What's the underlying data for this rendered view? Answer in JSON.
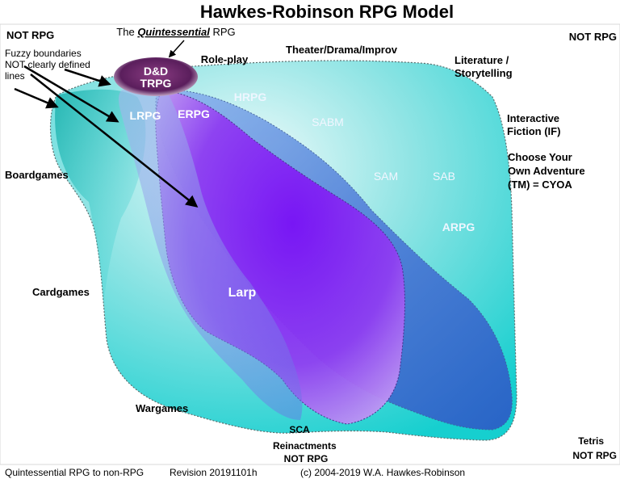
{
  "title": "Hawkes-Robinson RPG Model",
  "quintessential_label": {
    "prefix": "The ",
    "emphasis": "Quintessential",
    "suffix": " RPG"
  },
  "corner_labels": {
    "top_left": "NOT RPG",
    "top_right": "NOT RPG",
    "bottom_right_1": "Tetris",
    "bottom_right_2": "NOT RPG"
  },
  "fuzzy_note": [
    "Fuzzy boundaries",
    "NOT clearly defined",
    "lines"
  ],
  "core_oval": [
    "D&D",
    "TRPG"
  ],
  "outer_labels": {
    "role_play": "Role-play",
    "theater": "Theater/Drama/Improv",
    "literature": [
      "Literature /",
      "Storytelling"
    ],
    "interactive_fiction": [
      "Interactive",
      "Fiction (IF)"
    ],
    "cyoa": [
      "Choose Your",
      "Own Adventure",
      "(TM) = CYOA"
    ],
    "boardgames": "Boardgames",
    "cardgames": "Cardgames",
    "wargames": "Wargames",
    "sca": "SCA",
    "reinactments": [
      "Reinactments",
      "NOT RPG"
    ]
  },
  "inner_labels": {
    "hrpg": "HRPG",
    "lrpg": "LRPG",
    "erpg": "ERPG",
    "sabm": "SABM",
    "sam": "SAM",
    "sab": "SAB",
    "arpg": "ARPG",
    "larp": "Larp"
  },
  "footer": {
    "left": "Quintessential RPG to non-RPG",
    "revision": "Revision 20191101h",
    "copyright": "(c) 2004-2019 W.A. Hawkes-Robinson"
  },
  "colors": {
    "outer_region": "#2fd6d6",
    "core_highlight": "#eaf8f8",
    "larp_region": "#7b2cf0",
    "erpg_band": "#3a6fd0",
    "oval": "#5a1e5c",
    "arrow": "#000000"
  }
}
